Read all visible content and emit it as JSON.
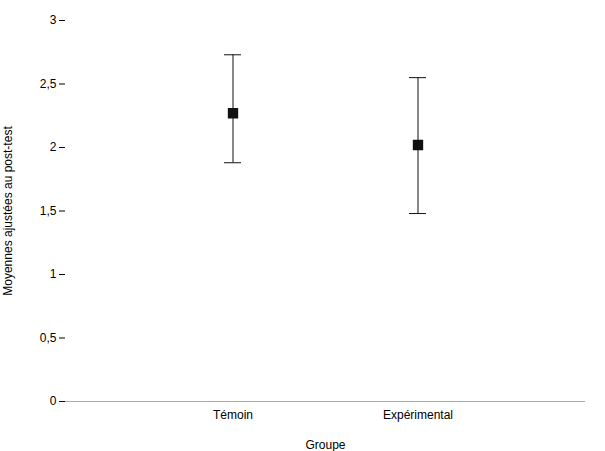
{
  "chart_data": {
    "type": "errorbar",
    "categories": [
      "Témoin",
      "Expérimental"
    ],
    "values": [
      2.27,
      2.02
    ],
    "error_upper": [
      0.46,
      0.53
    ],
    "error_lower": [
      0.39,
      0.54
    ],
    "ylabel": "Moyennes ajustées au post-test",
    "xlabel": "Groupe",
    "ylim": [
      0,
      3
    ],
    "yticks": [
      0,
      {
        "value": 0.5,
        "label": "0,5"
      },
      1,
      {
        "value": 1.5,
        "label": "1,5"
      },
      2,
      {
        "value": 2.5,
        "label": "2,5"
      },
      3
    ],
    "color": "#111111",
    "marker": "square",
    "grid": false
  }
}
